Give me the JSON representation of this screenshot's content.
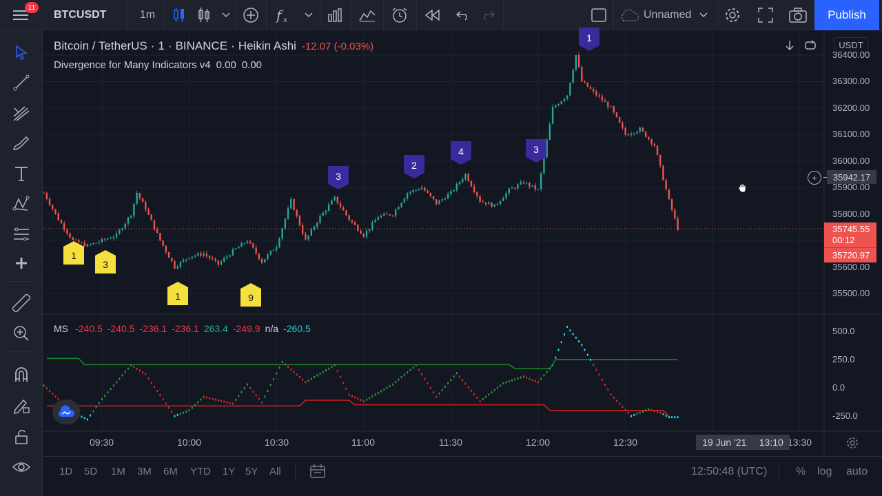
{
  "topbar": {
    "badge": "11",
    "symbol": "BTCUSDT",
    "interval": "1m",
    "layout_name": "Unnamed",
    "publish_label": "Publish"
  },
  "chart": {
    "legend": {
      "pair": "Bitcoin / TetherUS",
      "interval": "1",
      "exchange": "BINANCE",
      "chart_type": "Heikin Ashi",
      "change": "-12.07 (-0.03%)"
    },
    "indicator": {
      "name": "Divergence for Many Indicators v4",
      "v1": "0.00",
      "v2": "0.00"
    },
    "currency": "USDT",
    "price_ticks": [
      "36400.00",
      "36300.00",
      "36200.00",
      "36100.00",
      "36000.00",
      "35900.00",
      "35800.00",
      "35700.00",
      "35600.00",
      "35500.00"
    ],
    "crosshair_price": "35942.17",
    "last_price": "35745.55",
    "countdown": "00:12",
    "low_price": "35720.97",
    "markers": [
      {
        "label": "1",
        "style": "bull"
      },
      {
        "label": "3",
        "style": "bull"
      },
      {
        "label": "1",
        "style": "bull"
      },
      {
        "label": "9",
        "style": "bull"
      },
      {
        "label": "3",
        "style": "bear"
      },
      {
        "label": "2",
        "style": "bear"
      },
      {
        "label": "4",
        "style": "bear"
      },
      {
        "label": "3",
        "style": "bear"
      },
      {
        "label": "1",
        "style": "bear"
      }
    ]
  },
  "oscillator": {
    "name": "MS",
    "values": [
      {
        "text": "-240.5",
        "color": "#f23645"
      },
      {
        "text": "-240.5",
        "color": "#f23645"
      },
      {
        "text": "-236.1",
        "color": "#f23645"
      },
      {
        "text": "-236.1",
        "color": "#f23645"
      },
      {
        "text": "263.4",
        "color": "#22ab94"
      },
      {
        "text": "-249.9",
        "color": "#f23645"
      },
      {
        "text": "n/a",
        "color": "#d1d4dc"
      },
      {
        "text": "-260.5",
        "color": "#26c6da"
      }
    ],
    "ticks": [
      "500.0",
      "250.0",
      "0.0",
      "-250.0"
    ]
  },
  "time_axis": {
    "ticks": [
      "09:30",
      "10:00",
      "10:30",
      "11:00",
      "11:30",
      "12:00",
      "12:30",
      "13:30"
    ],
    "crosshair_date": "19 Jun '21",
    "crosshair_time": "13:10"
  },
  "bottombar": {
    "ranges": [
      "1D",
      "5D",
      "1M",
      "3M",
      "6M",
      "YTD",
      "1Y",
      "5Y",
      "All"
    ],
    "clock": "12:50:48 (UTC)",
    "percent": "%",
    "log": "log",
    "auto": "auto"
  },
  "colors": {
    "up": "#26a69a",
    "down": "#ef5350",
    "bull_marker": "#f5e03d",
    "bear_marker": "#3a2a9c",
    "publish": "#2962ff"
  },
  "chart_data": {
    "type": "candlestick",
    "chart_style": "Heikin Ashi",
    "x_range": [
      "09:10",
      "13:40"
    ],
    "ylim": [
      35450,
      36450
    ],
    "close_path": [
      [
        "09:10",
        35880
      ],
      [
        "09:15",
        35780
      ],
      [
        "09:20",
        35700
      ],
      [
        "09:25",
        35680
      ],
      [
        "09:30",
        35700
      ],
      [
        "09:35",
        35720
      ],
      [
        "09:40",
        35800
      ],
      [
        "09:42",
        35880
      ],
      [
        "09:45",
        35820
      ],
      [
        "09:50",
        35700
      ],
      [
        "09:55",
        35600
      ],
      [
        "10:00",
        35640
      ],
      [
        "10:05",
        35650
      ],
      [
        "10:10",
        35610
      ],
      [
        "10:15",
        35660
      ],
      [
        "10:20",
        35700
      ],
      [
        "10:25",
        35620
      ],
      [
        "10:30",
        35680
      ],
      [
        "10:35",
        35850
      ],
      [
        "10:40",
        35700
      ],
      [
        "10:45",
        35790
      ],
      [
        "10:50",
        35860
      ],
      [
        "10:55",
        35780
      ],
      [
        "11:00",
        35720
      ],
      [
        "11:05",
        35790
      ],
      [
        "11:10",
        35800
      ],
      [
        "11:15",
        35880
      ],
      [
        "11:20",
        35900
      ],
      [
        "11:25",
        35840
      ],
      [
        "11:30",
        35880
      ],
      [
        "11:35",
        35950
      ],
      [
        "11:40",
        35850
      ],
      [
        "11:45",
        35830
      ],
      [
        "11:50",
        35890
      ],
      [
        "11:55",
        35920
      ],
      [
        "12:00",
        35890
      ],
      [
        "12:05",
        36200
      ],
      [
        "12:10",
        36250
      ],
      [
        "12:13",
        36400
      ],
      [
        "12:15",
        36300
      ],
      [
        "12:20",
        36250
      ],
      [
        "12:25",
        36200
      ],
      [
        "12:30",
        36100
      ],
      [
        "12:35",
        36120
      ],
      [
        "12:40",
        36060
      ],
      [
        "12:45",
        35850
      ],
      [
        "12:48",
        35745
      ]
    ],
    "oscillator": {
      "name": "MS",
      "ylim": [
        -300,
        550
      ],
      "ticks": [
        500,
        250,
        0,
        -250
      ],
      "upper_level": 250,
      "lower_level": -160
    }
  }
}
